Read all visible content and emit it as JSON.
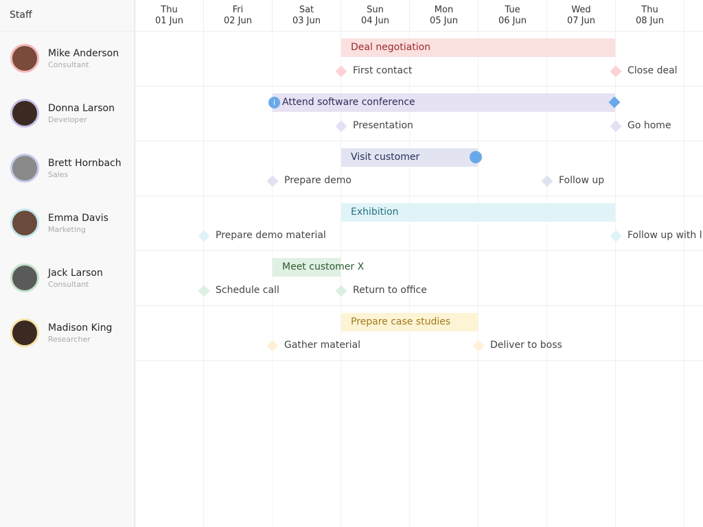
{
  "header": {
    "title": "Staff"
  },
  "days": [
    {
      "day": "Thu",
      "date": "01 Jun"
    },
    {
      "day": "Fri",
      "date": "02 Jun"
    },
    {
      "day": "Sat",
      "date": "03 Jun"
    },
    {
      "day": "Sun",
      "date": "04 Jun"
    },
    {
      "day": "Mon",
      "date": "05 Jun"
    },
    {
      "day": "Tue",
      "date": "06 Jun"
    },
    {
      "day": "Wed",
      "date": "07 Jun"
    },
    {
      "day": "Thu",
      "date": "08 Jun"
    }
  ],
  "staff": [
    {
      "name": "Mike Anderson",
      "role": "Consultant",
      "event": "Deal negotiation",
      "milestones": [
        "First contact",
        "Close deal"
      ]
    },
    {
      "name": "Donna Larson",
      "role": "Developer",
      "event": "Attend software conference",
      "milestones": [
        "Presentation",
        "Go home"
      ]
    },
    {
      "name": "Brett Hornbach",
      "role": "Sales",
      "event": "Visit customer",
      "milestones": [
        "Prepare demo",
        "Follow up"
      ]
    },
    {
      "name": "Emma Davis",
      "role": "Marketing",
      "event": "Exhibition",
      "milestones": [
        "Prepare demo material",
        "Follow up with l"
      ]
    },
    {
      "name": "Jack Larson",
      "role": "Consultant",
      "event": "Meet customer X",
      "milestones": [
        "Schedule call",
        "Return to office"
      ]
    },
    {
      "name": "Madison King",
      "role": "Researcher",
      "event": "Prepare case studies",
      "milestones": [
        "Gather material",
        "Deliver to boss"
      ]
    }
  ]
}
